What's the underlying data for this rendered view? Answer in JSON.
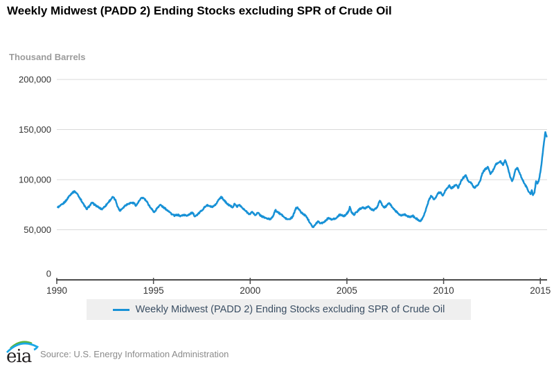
{
  "header": {
    "title": "Weekly Midwest (PADD 2) Ending Stocks excluding SPR of Crude Oil"
  },
  "legend": {
    "label": "Weekly Midwest (PADD 2) Ending Stocks excluding SPR of Crude Oil"
  },
  "footer": {
    "logo_text": "eia",
    "source": "Source: U.S. Energy Information Administration"
  },
  "colors": {
    "line": "#1791d6",
    "grid": "#d9d9d9",
    "axis": "#4a4a4a",
    "tick_text": "#333333",
    "unit": "#9b9b9b",
    "legend_bg": "#efefef",
    "legend_text": "#3a4e63",
    "source": "#8a8a8a",
    "logo_text": "#231f20",
    "logo_green": "#5bb53c",
    "logo_blue": "#1aa8e6"
  },
  "chart_data": {
    "type": "line",
    "title": "Weekly Midwest (PADD 2) Ending Stocks excluding SPR of Crude Oil",
    "unit_label": "Thousand Barrels",
    "xlabel": "",
    "ylabel": "Thousand Barrels",
    "xlim": [
      1990,
      2015.35
    ],
    "ylim": [
      0,
      200000
    ],
    "grid": "horizontal",
    "legend_position": "bottom",
    "y_ticks": [
      {
        "label": "0",
        "value": 0
      },
      {
        "label": "50,000",
        "value": 50000
      },
      {
        "label": "100,000",
        "value": 100000
      },
      {
        "label": "150,000",
        "value": 150000
      },
      {
        "label": "200,000",
        "value": 200000
      }
    ],
    "x_ticks": [
      {
        "label": "1990",
        "value": 1990
      },
      {
        "label": "1995",
        "value": 1995
      },
      {
        "label": "2000",
        "value": 2000
      },
      {
        "label": "2005",
        "value": 2005
      },
      {
        "label": "2010",
        "value": 2010
      },
      {
        "label": "2015",
        "value": 2015
      }
    ],
    "series": [
      {
        "name": "Weekly Midwest (PADD 2) Ending Stocks excluding SPR of Crude Oil",
        "color": "#1791d6",
        "points": [
          [
            1990.05,
            72500
          ],
          [
            1990.15,
            73500
          ],
          [
            1990.3,
            75500
          ],
          [
            1990.5,
            79500
          ],
          [
            1990.65,
            84000
          ],
          [
            1990.8,
            87000
          ],
          [
            1990.93,
            88300
          ],
          [
            1991.05,
            86000
          ],
          [
            1991.2,
            81500
          ],
          [
            1991.35,
            76500
          ],
          [
            1991.54,
            70500
          ],
          [
            1991.7,
            74000
          ],
          [
            1991.82,
            77000
          ],
          [
            1992.0,
            74500
          ],
          [
            1992.15,
            72500
          ],
          [
            1992.32,
            70500
          ],
          [
            1992.5,
            73500
          ],
          [
            1992.65,
            77000
          ],
          [
            1992.8,
            80500
          ],
          [
            1992.9,
            82800
          ],
          [
            1993.05,
            79000
          ],
          [
            1993.15,
            73000
          ],
          [
            1993.25,
            69000
          ],
          [
            1993.4,
            71500
          ],
          [
            1993.55,
            74500
          ],
          [
            1993.7,
            76000
          ],
          [
            1993.85,
            77000
          ],
          [
            1994.0,
            76500
          ],
          [
            1994.1,
            74000
          ],
          [
            1994.25,
            78500
          ],
          [
            1994.4,
            82000
          ],
          [
            1994.5,
            81500
          ],
          [
            1994.65,
            78000
          ],
          [
            1994.8,
            73500
          ],
          [
            1994.95,
            69500
          ],
          [
            1995.05,
            67500
          ],
          [
            1995.2,
            72000
          ],
          [
            1995.35,
            75000
          ],
          [
            1995.5,
            72500
          ],
          [
            1995.65,
            70500
          ],
          [
            1995.8,
            68500
          ],
          [
            1995.95,
            65500
          ],
          [
            1996.1,
            64000
          ],
          [
            1996.25,
            65000
          ],
          [
            1996.4,
            63500
          ],
          [
            1996.55,
            65000
          ],
          [
            1996.7,
            64000
          ],
          [
            1996.85,
            65500
          ],
          [
            1997.0,
            67000
          ],
          [
            1997.15,
            63500
          ],
          [
            1997.3,
            65500
          ],
          [
            1997.45,
            68500
          ],
          [
            1997.6,
            71500
          ],
          [
            1997.75,
            74500
          ],
          [
            1997.9,
            73500
          ],
          [
            1998.05,
            72500
          ],
          [
            1998.2,
            74500
          ],
          [
            1998.35,
            79500
          ],
          [
            1998.5,
            83000
          ],
          [
            1998.65,
            79500
          ],
          [
            1998.8,
            76000
          ],
          [
            1998.95,
            74000
          ],
          [
            1999.1,
            72500
          ],
          [
            1999.2,
            76000
          ],
          [
            1999.3,
            73000
          ],
          [
            1999.45,
            75000
          ],
          [
            1999.6,
            71500
          ],
          [
            1999.75,
            69000
          ],
          [
            1999.9,
            66500
          ],
          [
            2000.0,
            65500
          ],
          [
            2000.1,
            68000
          ],
          [
            2000.25,
            64500
          ],
          [
            2000.4,
            67000
          ],
          [
            2000.55,
            64000
          ],
          [
            2000.7,
            62500
          ],
          [
            2000.9,
            61000
          ],
          [
            2001.05,
            60500
          ],
          [
            2001.2,
            64500
          ],
          [
            2001.3,
            69500
          ],
          [
            2001.45,
            67000
          ],
          [
            2001.6,
            65500
          ],
          [
            2001.75,
            62500
          ],
          [
            2001.9,
            60500
          ],
          [
            2002.05,
            60500
          ],
          [
            2002.2,
            63000
          ],
          [
            2002.35,
            71000
          ],
          [
            2002.45,
            72500
          ],
          [
            2002.6,
            68000
          ],
          [
            2002.75,
            65500
          ],
          [
            2002.9,
            63500
          ],
          [
            2003.0,
            60000
          ],
          [
            2003.15,
            55500
          ],
          [
            2003.25,
            52500
          ],
          [
            2003.35,
            54500
          ],
          [
            2003.5,
            58500
          ],
          [
            2003.65,
            56500
          ],
          [
            2003.8,
            57500
          ],
          [
            2003.95,
            60000
          ],
          [
            2004.05,
            62000
          ],
          [
            2004.2,
            60000
          ],
          [
            2004.35,
            61000
          ],
          [
            2004.5,
            62500
          ],
          [
            2004.65,
            65500
          ],
          [
            2004.8,
            63500
          ],
          [
            2004.95,
            65000
          ],
          [
            2005.1,
            69000
          ],
          [
            2005.15,
            73000
          ],
          [
            2005.25,
            67000
          ],
          [
            2005.35,
            65000
          ],
          [
            2005.5,
            67500
          ],
          [
            2005.65,
            70500
          ],
          [
            2005.8,
            72500
          ],
          [
            2005.95,
            71000
          ],
          [
            2006.1,
            73500
          ],
          [
            2006.25,
            70500
          ],
          [
            2006.4,
            69500
          ],
          [
            2006.55,
            72000
          ],
          [
            2006.7,
            79000
          ],
          [
            2006.85,
            74000
          ],
          [
            2006.95,
            72000
          ],
          [
            2007.1,
            75000
          ],
          [
            2007.2,
            76500
          ],
          [
            2007.35,
            72500
          ],
          [
            2007.5,
            69000
          ],
          [
            2007.65,
            66500
          ],
          [
            2007.8,
            64000
          ],
          [
            2007.95,
            65500
          ],
          [
            2008.1,
            64000
          ],
          [
            2008.25,
            62500
          ],
          [
            2008.4,
            64000
          ],
          [
            2008.55,
            61500
          ],
          [
            2008.7,
            60000
          ],
          [
            2008.8,
            58500
          ],
          [
            2008.95,
            63000
          ],
          [
            2009.05,
            68000
          ],
          [
            2009.15,
            74000
          ],
          [
            2009.25,
            80000
          ],
          [
            2009.35,
            84000
          ],
          [
            2009.5,
            80500
          ],
          [
            2009.6,
            82000
          ],
          [
            2009.7,
            86500
          ],
          [
            2009.85,
            87500
          ],
          [
            2009.95,
            84000
          ],
          [
            2010.1,
            89500
          ],
          [
            2010.2,
            91500
          ],
          [
            2010.3,
            94500
          ],
          [
            2010.4,
            91000
          ],
          [
            2010.5,
            93000
          ],
          [
            2010.65,
            95000
          ],
          [
            2010.75,
            91500
          ],
          [
            2010.9,
            98500
          ],
          [
            2011.0,
            101500
          ],
          [
            2011.15,
            104500
          ],
          [
            2011.25,
            99000
          ],
          [
            2011.4,
            97500
          ],
          [
            2011.5,
            94000
          ],
          [
            2011.6,
            92000
          ],
          [
            2011.75,
            94500
          ],
          [
            2011.9,
            99000
          ],
          [
            2012.0,
            106500
          ],
          [
            2012.15,
            110500
          ],
          [
            2012.3,
            112500
          ],
          [
            2012.42,
            105500
          ],
          [
            2012.55,
            109000
          ],
          [
            2012.7,
            115500
          ],
          [
            2012.82,
            116500
          ],
          [
            2012.93,
            118500
          ],
          [
            2013.07,
            114500
          ],
          [
            2013.18,
            119500
          ],
          [
            2013.3,
            113500
          ],
          [
            2013.43,
            103500
          ],
          [
            2013.54,
            98500
          ],
          [
            2013.64,
            103500
          ],
          [
            2013.72,
            110300
          ],
          [
            2013.82,
            111700
          ],
          [
            2013.93,
            107000
          ],
          [
            2014.07,
            100000
          ],
          [
            2014.2,
            95500
          ],
          [
            2014.32,
            91500
          ],
          [
            2014.42,
            87500
          ],
          [
            2014.5,
            85500
          ],
          [
            2014.56,
            89500
          ],
          [
            2014.62,
            84500
          ],
          [
            2014.7,
            87000
          ],
          [
            2014.78,
            98500
          ],
          [
            2014.85,
            96000
          ],
          [
            2014.92,
            99000
          ],
          [
            2015.0,
            107000
          ],
          [
            2015.08,
            119000
          ],
          [
            2015.15,
            131000
          ],
          [
            2015.21,
            140000
          ],
          [
            2015.26,
            147500
          ],
          [
            2015.3,
            144500
          ],
          [
            2015.33,
            143000
          ]
        ]
      }
    ]
  }
}
